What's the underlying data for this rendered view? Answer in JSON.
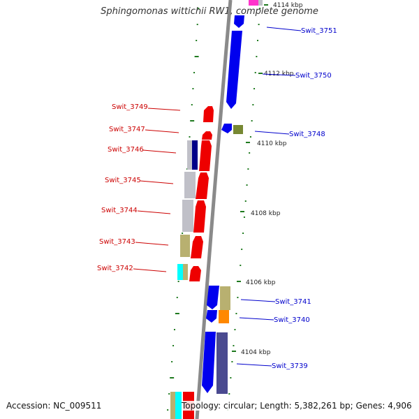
{
  "title": "Sphingomonas wittichii RW1, complete genome",
  "accession": "Accession: NC_009511",
  "summary": "Topology: circular; Length: 5,382,261 bp; Genes: 4,906",
  "colors": {
    "backbone": "#8a8a8a",
    "tick": "#1f7a1f",
    "forward_label": "#cc0000",
    "reverse_label": "#0000cc",
    "red": "#ee0000",
    "blue": "#0000ee",
    "navy": "#000088",
    "silver": "#c0c0c8",
    "khaki": "#b8b070",
    "olive": "#778833",
    "orange": "#ff8800",
    "slate": "#4a4a90",
    "cyan": "#00ffff",
    "magenta": "#ff33cc"
  },
  "scale_labels": [
    "4114 kbp",
    "4112 kbp",
    "4110 kbp",
    "4108 kbp",
    "4106 kbp",
    "4104 kbp"
  ],
  "genes": [
    {
      "name": "Swit_3751",
      "strand": "reverse"
    },
    {
      "name": "Swit_3750",
      "strand": "reverse"
    },
    {
      "name": "Swit_3749",
      "strand": "forward"
    },
    {
      "name": "Swit_3748",
      "strand": "reverse"
    },
    {
      "name": "Swit_3747",
      "strand": "forward"
    },
    {
      "name": "Swit_3746",
      "strand": "forward"
    },
    {
      "name": "Swit_3745",
      "strand": "forward"
    },
    {
      "name": "Swit_3744",
      "strand": "forward"
    },
    {
      "name": "Swit_3743",
      "strand": "forward"
    },
    {
      "name": "Swit_3742",
      "strand": "forward"
    },
    {
      "name": "Swit_3741",
      "strand": "reverse"
    },
    {
      "name": "Swit_3740",
      "strand": "reverse"
    },
    {
      "name": "Swit_3739",
      "strand": "reverse"
    }
  ]
}
